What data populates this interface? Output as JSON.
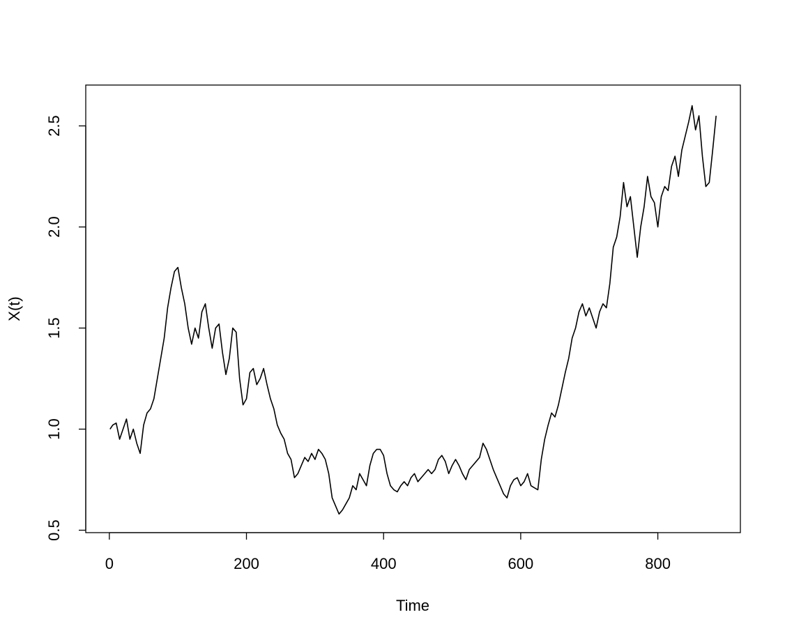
{
  "chart_data": {
    "type": "line",
    "x_label": "Time",
    "y_label": "X(t)",
    "x": [
      1,
      5,
      10,
      15,
      20,
      25,
      30,
      35,
      40,
      45,
      50,
      55,
      60,
      65,
      70,
      75,
      80,
      85,
      90,
      95,
      100,
      105,
      110,
      115,
      120,
      125,
      130,
      135,
      140,
      145,
      150,
      155,
      160,
      165,
      170,
      175,
      180,
      185,
      190,
      195,
      200,
      205,
      210,
      215,
      220,
      225,
      230,
      235,
      240,
      245,
      250,
      255,
      260,
      265,
      270,
      275,
      280,
      285,
      290,
      295,
      300,
      305,
      310,
      315,
      320,
      325,
      330,
      335,
      340,
      345,
      350,
      355,
      360,
      365,
      370,
      375,
      380,
      385,
      390,
      395,
      400,
      405,
      410,
      415,
      420,
      425,
      430,
      435,
      440,
      445,
      450,
      455,
      460,
      465,
      470,
      475,
      480,
      485,
      490,
      495,
      500,
      505,
      510,
      515,
      520,
      525,
      530,
      535,
      540,
      545,
      550,
      555,
      560,
      565,
      570,
      575,
      580,
      585,
      590,
      595,
      600,
      605,
      610,
      615,
      620,
      625,
      630,
      635,
      640,
      645,
      650,
      655,
      660,
      665,
      670,
      675,
      680,
      685,
      690,
      695,
      700,
      705,
      710,
      715,
      720,
      725,
      730,
      735,
      740,
      745,
      750,
      755,
      760,
      765,
      770,
      775,
      780,
      785,
      790,
      795,
      800,
      805,
      810,
      815,
      820,
      825,
      830,
      835,
      840,
      845,
      850,
      855,
      860,
      865,
      870,
      875,
      880,
      885
    ],
    "series": [
      {
        "color": "#000000",
        "values": [
          1.0,
          1.02,
          1.03,
          0.95,
          1.0,
          1.05,
          0.95,
          1.0,
          0.93,
          0.88,
          1.02,
          1.08,
          1.1,
          1.15,
          1.25,
          1.35,
          1.45,
          1.6,
          1.7,
          1.78,
          1.8,
          1.7,
          1.62,
          1.5,
          1.42,
          1.5,
          1.45,
          1.58,
          1.62,
          1.5,
          1.4,
          1.5,
          1.52,
          1.38,
          1.27,
          1.35,
          1.5,
          1.48,
          1.25,
          1.12,
          1.15,
          1.28,
          1.3,
          1.22,
          1.25,
          1.3,
          1.22,
          1.15,
          1.1,
          1.02,
          0.98,
          0.95,
          0.88,
          0.85,
          0.76,
          0.78,
          0.82,
          0.86,
          0.84,
          0.88,
          0.85,
          0.9,
          0.88,
          0.85,
          0.78,
          0.66,
          0.62,
          0.58,
          0.6,
          0.63,
          0.66,
          0.72,
          0.7,
          0.78,
          0.75,
          0.72,
          0.82,
          0.88,
          0.9,
          0.9,
          0.87,
          0.78,
          0.72,
          0.7,
          0.69,
          0.72,
          0.74,
          0.72,
          0.76,
          0.78,
          0.74,
          0.76,
          0.78,
          0.8,
          0.78,
          0.8,
          0.85,
          0.87,
          0.84,
          0.78,
          0.82,
          0.85,
          0.82,
          0.78,
          0.75,
          0.8,
          0.82,
          0.84,
          0.86,
          0.93,
          0.9,
          0.85,
          0.8,
          0.76,
          0.72,
          0.68,
          0.66,
          0.72,
          0.75,
          0.76,
          0.72,
          0.74,
          0.78,
          0.72,
          0.71,
          0.7,
          0.85,
          0.95,
          1.02,
          1.08,
          1.06,
          1.12,
          1.2,
          1.28,
          1.35,
          1.45,
          1.5,
          1.58,
          1.62,
          1.56,
          1.6,
          1.55,
          1.5,
          1.58,
          1.62,
          1.6,
          1.72,
          1.9,
          1.95,
          2.05,
          2.22,
          2.1,
          2.15,
          2.0,
          1.85,
          2.0,
          2.1,
          2.25,
          2.15,
          2.12,
          2.0,
          2.15,
          2.2,
          2.18,
          2.3,
          2.35,
          2.25,
          2.38,
          2.45,
          2.52,
          2.6,
          2.48,
          2.55,
          2.35,
          2.2,
          2.22,
          2.38,
          2.55
        ]
      }
    ],
    "xlim": [
      -34.4,
      920.4
    ],
    "ylim": [
      0.488,
      2.702
    ],
    "xticks": [
      0,
      200,
      400,
      600,
      800
    ],
    "yticks": [
      0.5,
      {
        "value": 1,
        "label": "1.0"
      },
      1.5,
      {
        "value": 2,
        "label": "2.0"
      },
      2.5
    ]
  }
}
